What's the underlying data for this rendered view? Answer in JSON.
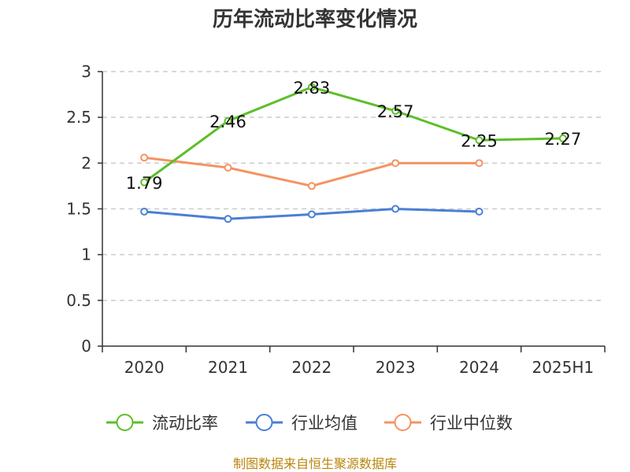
{
  "chart_data": {
    "type": "line",
    "title": "历年流动比率变化情况",
    "categories": [
      "2020",
      "2021",
      "2022",
      "2023",
      "2024",
      "2025H1"
    ],
    "ylim": [
      0,
      3
    ],
    "yticks": [
      "0",
      "0.5",
      "1",
      "1.5",
      "2",
      "2.5",
      "3"
    ],
    "grid": true,
    "legend_position": "bottom",
    "series": [
      {
        "name": "流动比率",
        "color": "#5cbf2a",
        "values": [
          1.79,
          2.46,
          2.83,
          2.57,
          2.25,
          2.27
        ],
        "labels": [
          "1.79",
          "2.46",
          "2.83",
          "2.57",
          "2.25",
          "2.27"
        ]
      },
      {
        "name": "行业均值",
        "color": "#4a7fd4",
        "values": [
          1.47,
          1.39,
          1.44,
          1.5,
          1.47,
          null
        ]
      },
      {
        "name": "行业中位数",
        "color": "#f59361",
        "values": [
          2.06,
          1.95,
          1.75,
          2.0,
          2.0,
          null
        ]
      }
    ]
  },
  "source": "制图数据来自恒生聚源数据库"
}
